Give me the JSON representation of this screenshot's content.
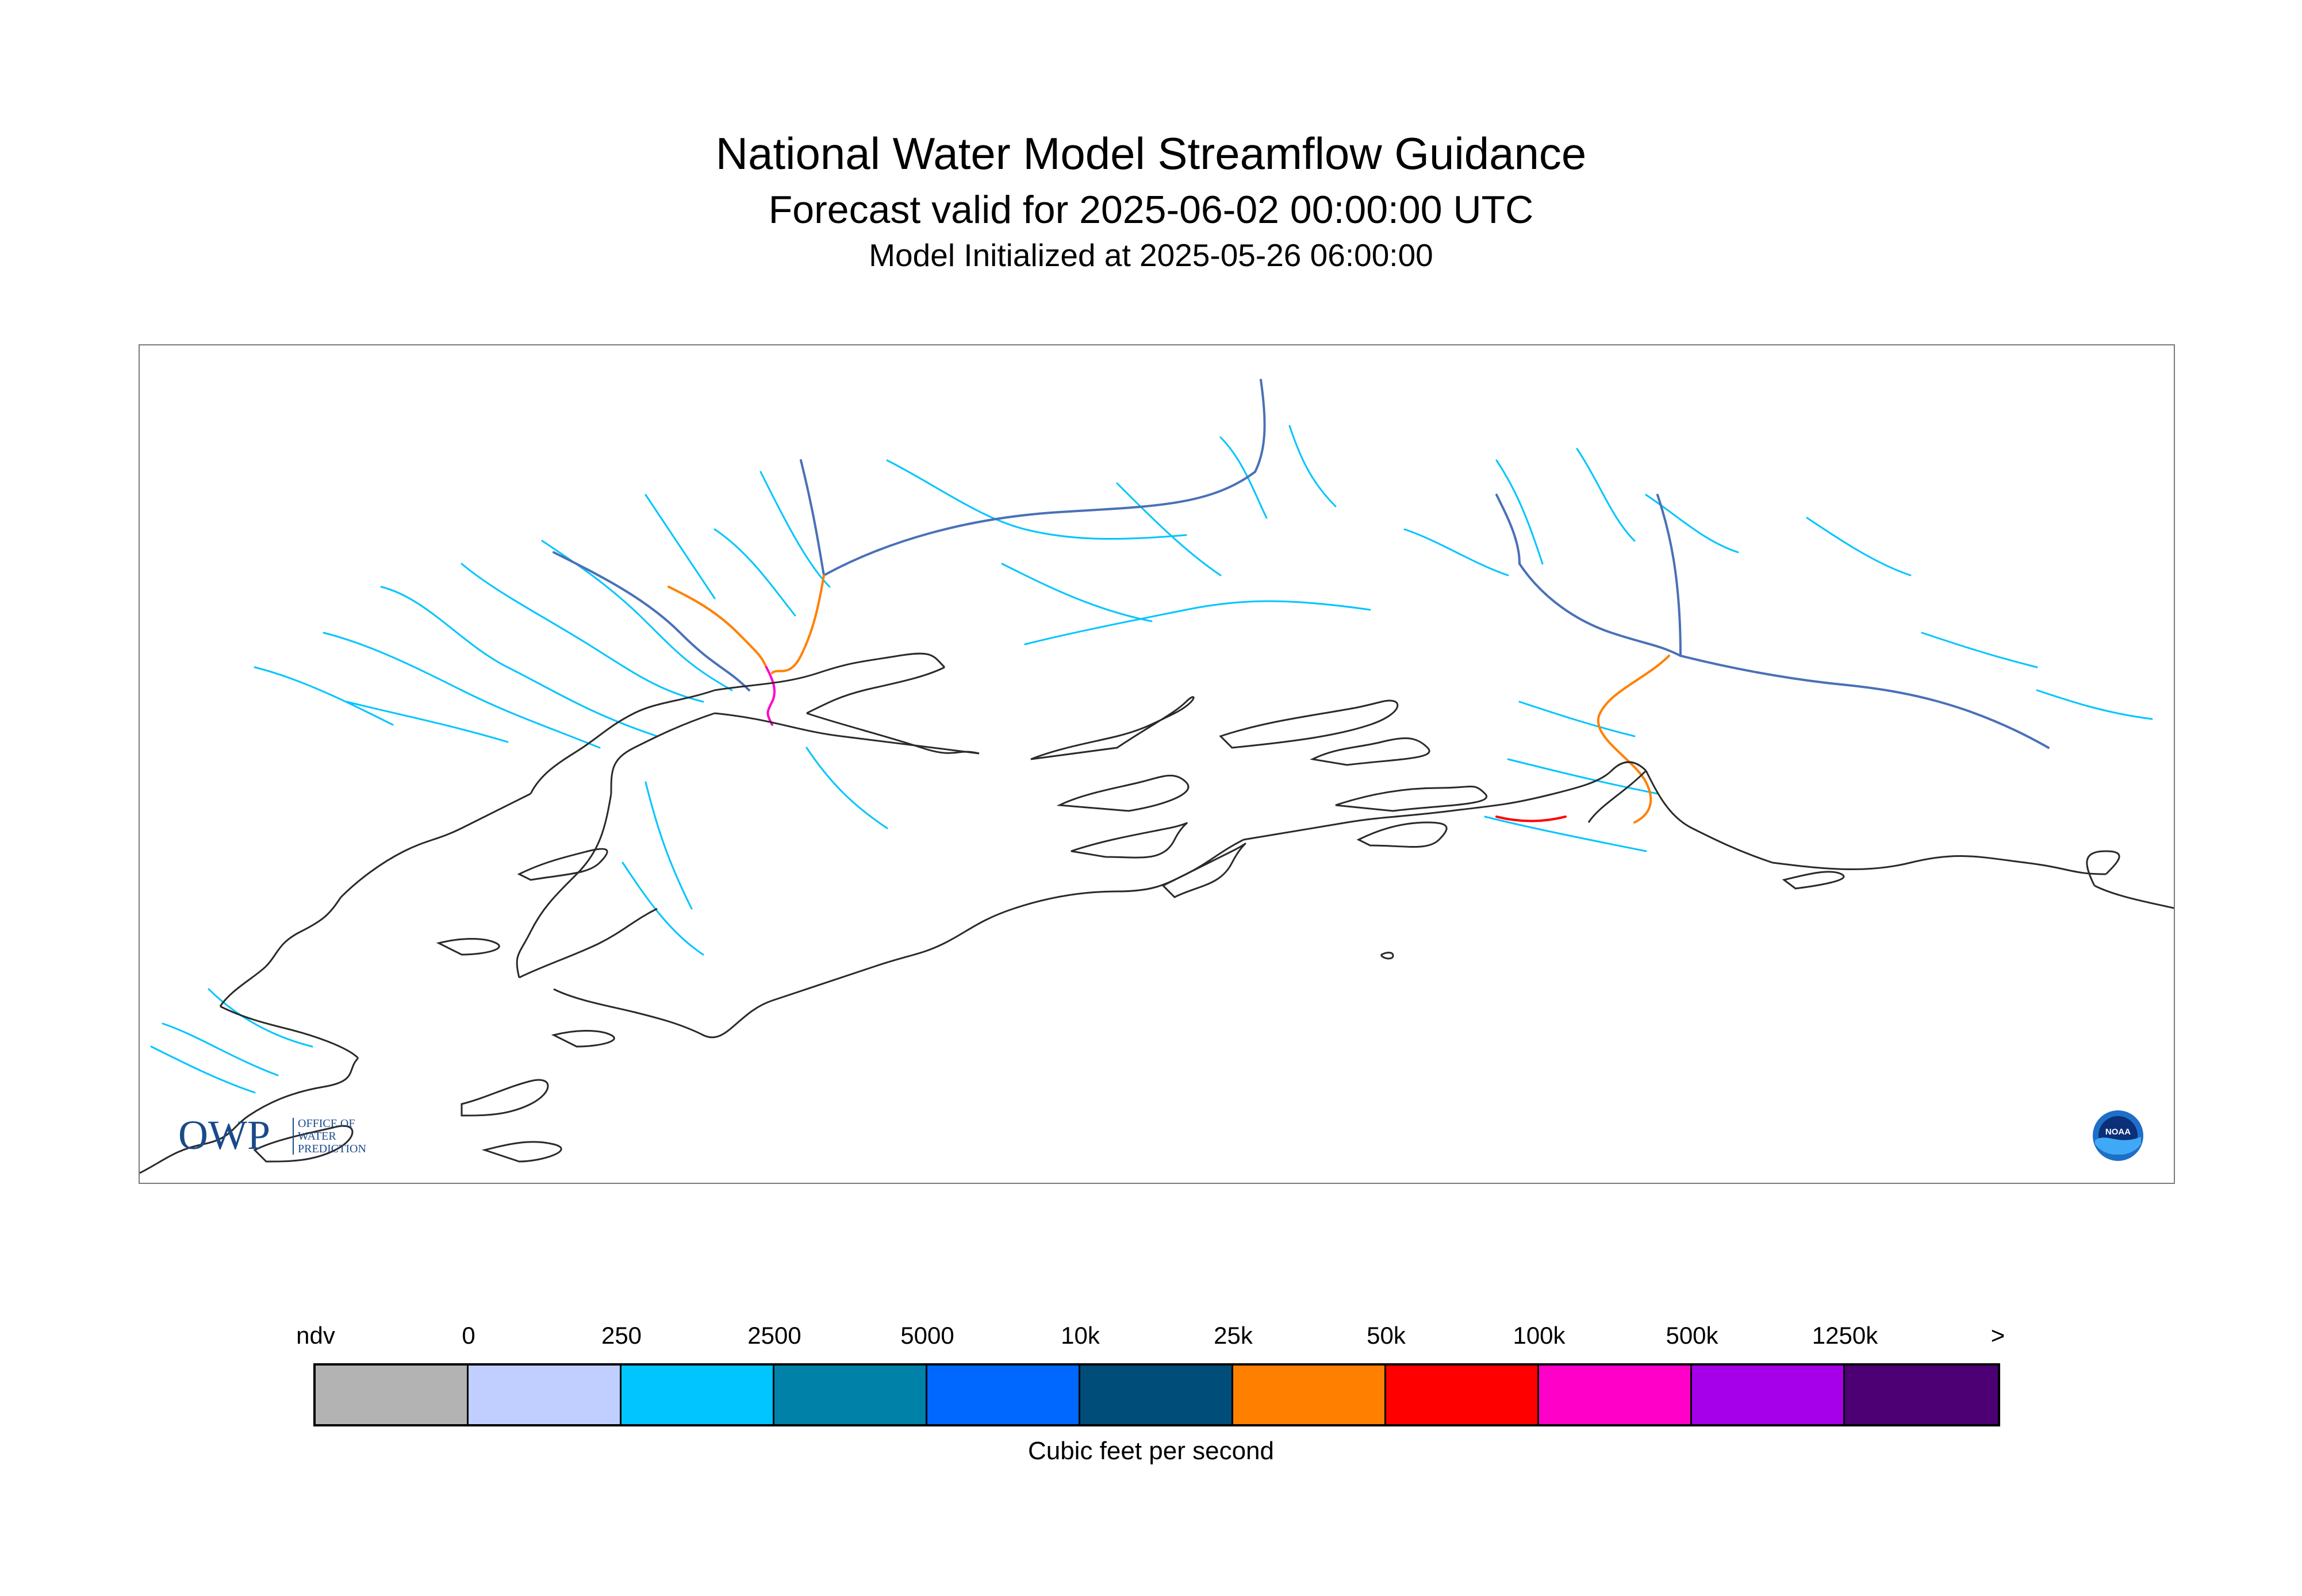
{
  "title": "National Water Model Streamflow Guidance",
  "subtitle": "Forecast valid for 2025-06-02 00:00:00 UTC",
  "init_line": "Model Initialized at 2025-05-26 06:00:00",
  "logos": {
    "owp_mark": "OWP",
    "owp_text": [
      "OFFICE OF",
      "WATER",
      "PREDICTION"
    ],
    "noaa_text": "NOAA"
  },
  "legend": {
    "labels": [
      "ndv",
      "0",
      "250",
      "2500",
      "5000",
      "10k",
      "25k",
      "50k",
      "100k",
      "500k",
      "1250k",
      ">"
    ],
    "colors": [
      "#b3b3b3",
      "#c0cfff",
      "#00c5ff",
      "#0082a8",
      "#0068ff",
      "#004d7a",
      "#ff8000",
      "#ff0000",
      "#ff00c8",
      "#a600ea",
      "#4c0073"
    ],
    "units": "Cubic feet per second"
  },
  "map_colors": {
    "coastline": "#2a2a2a",
    "low_flow": "#00c5ff",
    "mid_flow": "#4a70b8",
    "high_flow": "#ff8000",
    "peak_flow": "#ff00c8",
    "very_high_flow": "#ff0000"
  }
}
